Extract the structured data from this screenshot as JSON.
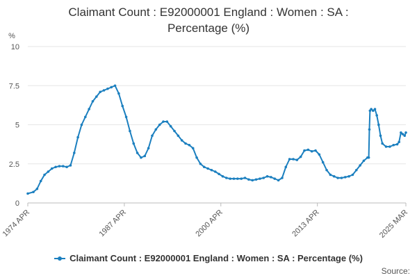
{
  "title_lines": [
    "Claimant Count : E92000001 England : Women : SA :",
    "Percentage (%)"
  ],
  "source_label": "Source:",
  "chart_data": {
    "type": "line",
    "title": "Claimant Count : E92000001 England : Women : SA : Percentage (%)",
    "ylabel": "%",
    "xlabel": "",
    "ylim": [
      0,
      10
    ],
    "yticks": [
      0,
      2.5,
      5,
      7.5,
      10
    ],
    "ytick_labels": [
      "0",
      "2.5",
      "5",
      "7.5",
      "10"
    ],
    "xlim": [
      "1974-04",
      "2025-03"
    ],
    "xticks": [
      "1974-04",
      "1987-04",
      "2000-04",
      "2013-04",
      "2025-03"
    ],
    "xtick_labels": [
      "1974 APR",
      "1987 APR",
      "2000 APR",
      "2013 APR",
      "2025 MAR"
    ],
    "grid": "horizontal",
    "legend_position": "bottom",
    "color": "#1b7fbf",
    "series": [
      {
        "name": "Claimant Count : E92000001 England : Women : SA : Percentage (%)",
        "points": [
          [
            "1974-04",
            0.6
          ],
          [
            "1975-01",
            0.7
          ],
          [
            "1975-07",
            0.9
          ],
          [
            "1976-01",
            1.4
          ],
          [
            "1976-07",
            1.8
          ],
          [
            "1977-01",
            2.0
          ],
          [
            "1977-07",
            2.2
          ],
          [
            "1978-01",
            2.3
          ],
          [
            "1978-07",
            2.35
          ],
          [
            "1979-01",
            2.35
          ],
          [
            "1979-07",
            2.3
          ],
          [
            "1980-01",
            2.4
          ],
          [
            "1980-07",
            3.2
          ],
          [
            "1981-01",
            4.2
          ],
          [
            "1981-07",
            5.0
          ],
          [
            "1982-01",
            5.5
          ],
          [
            "1982-07",
            6.0
          ],
          [
            "1983-01",
            6.5
          ],
          [
            "1983-07",
            6.8
          ],
          [
            "1984-01",
            7.1
          ],
          [
            "1984-07",
            7.2
          ],
          [
            "1985-01",
            7.3
          ],
          [
            "1985-07",
            7.4
          ],
          [
            "1986-01",
            7.5
          ],
          [
            "1986-07",
            7.0
          ],
          [
            "1987-01",
            6.2
          ],
          [
            "1987-07",
            5.5
          ],
          [
            "1988-01",
            4.6
          ],
          [
            "1988-07",
            3.8
          ],
          [
            "1989-01",
            3.2
          ],
          [
            "1989-07",
            2.9
          ],
          [
            "1990-01",
            3.0
          ],
          [
            "1990-07",
            3.5
          ],
          [
            "1991-01",
            4.3
          ],
          [
            "1991-07",
            4.7
          ],
          [
            "1992-01",
            5.0
          ],
          [
            "1992-07",
            5.2
          ],
          [
            "1993-01",
            5.2
          ],
          [
            "1993-07",
            4.9
          ],
          [
            "1994-01",
            4.6
          ],
          [
            "1994-07",
            4.3
          ],
          [
            "1995-01",
            4.0
          ],
          [
            "1995-07",
            3.8
          ],
          [
            "1996-01",
            3.7
          ],
          [
            "1996-07",
            3.5
          ],
          [
            "1997-01",
            2.9
          ],
          [
            "1997-07",
            2.5
          ],
          [
            "1998-01",
            2.3
          ],
          [
            "1998-07",
            2.2
          ],
          [
            "1999-01",
            2.1
          ],
          [
            "1999-07",
            2.0
          ],
          [
            "2000-01",
            1.85
          ],
          [
            "2000-07",
            1.7
          ],
          [
            "2001-01",
            1.6
          ],
          [
            "2001-07",
            1.55
          ],
          [
            "2002-01",
            1.55
          ],
          [
            "2002-07",
            1.55
          ],
          [
            "2003-01",
            1.55
          ],
          [
            "2003-07",
            1.6
          ],
          [
            "2004-01",
            1.5
          ],
          [
            "2004-07",
            1.45
          ],
          [
            "2005-01",
            1.5
          ],
          [
            "2005-07",
            1.55
          ],
          [
            "2006-01",
            1.6
          ],
          [
            "2006-07",
            1.7
          ],
          [
            "2007-01",
            1.65
          ],
          [
            "2007-07",
            1.55
          ],
          [
            "2008-01",
            1.45
          ],
          [
            "2008-07",
            1.6
          ],
          [
            "2009-01",
            2.3
          ],
          [
            "2009-07",
            2.8
          ],
          [
            "2010-01",
            2.8
          ],
          [
            "2010-07",
            2.75
          ],
          [
            "2011-01",
            2.95
          ],
          [
            "2011-07",
            3.35
          ],
          [
            "2012-01",
            3.4
          ],
          [
            "2012-07",
            3.3
          ],
          [
            "2013-01",
            3.35
          ],
          [
            "2013-07",
            3.1
          ],
          [
            "2014-01",
            2.6
          ],
          [
            "2014-07",
            2.1
          ],
          [
            "2015-01",
            1.8
          ],
          [
            "2015-07",
            1.7
          ],
          [
            "2016-01",
            1.6
          ],
          [
            "2016-07",
            1.6
          ],
          [
            "2017-01",
            1.65
          ],
          [
            "2017-07",
            1.7
          ],
          [
            "2018-01",
            1.8
          ],
          [
            "2018-07",
            2.1
          ],
          [
            "2019-01",
            2.4
          ],
          [
            "2019-07",
            2.7
          ],
          [
            "2020-01",
            2.9
          ],
          [
            "2020-03",
            2.9
          ],
          [
            "2020-04",
            4.7
          ],
          [
            "2020-05",
            5.9
          ],
          [
            "2020-07",
            6.0
          ],
          [
            "2020-10",
            5.9
          ],
          [
            "2021-01",
            6.0
          ],
          [
            "2021-04",
            5.6
          ],
          [
            "2021-07",
            5.0
          ],
          [
            "2021-10",
            4.3
          ],
          [
            "2022-01",
            3.8
          ],
          [
            "2022-07",
            3.6
          ],
          [
            "2023-01",
            3.6
          ],
          [
            "2023-07",
            3.7
          ],
          [
            "2024-01",
            3.75
          ],
          [
            "2024-04",
            3.9
          ],
          [
            "2024-07",
            4.5
          ],
          [
            "2024-10",
            4.4
          ],
          [
            "2025-01",
            4.3
          ],
          [
            "2025-03",
            4.5
          ]
        ]
      }
    ]
  }
}
